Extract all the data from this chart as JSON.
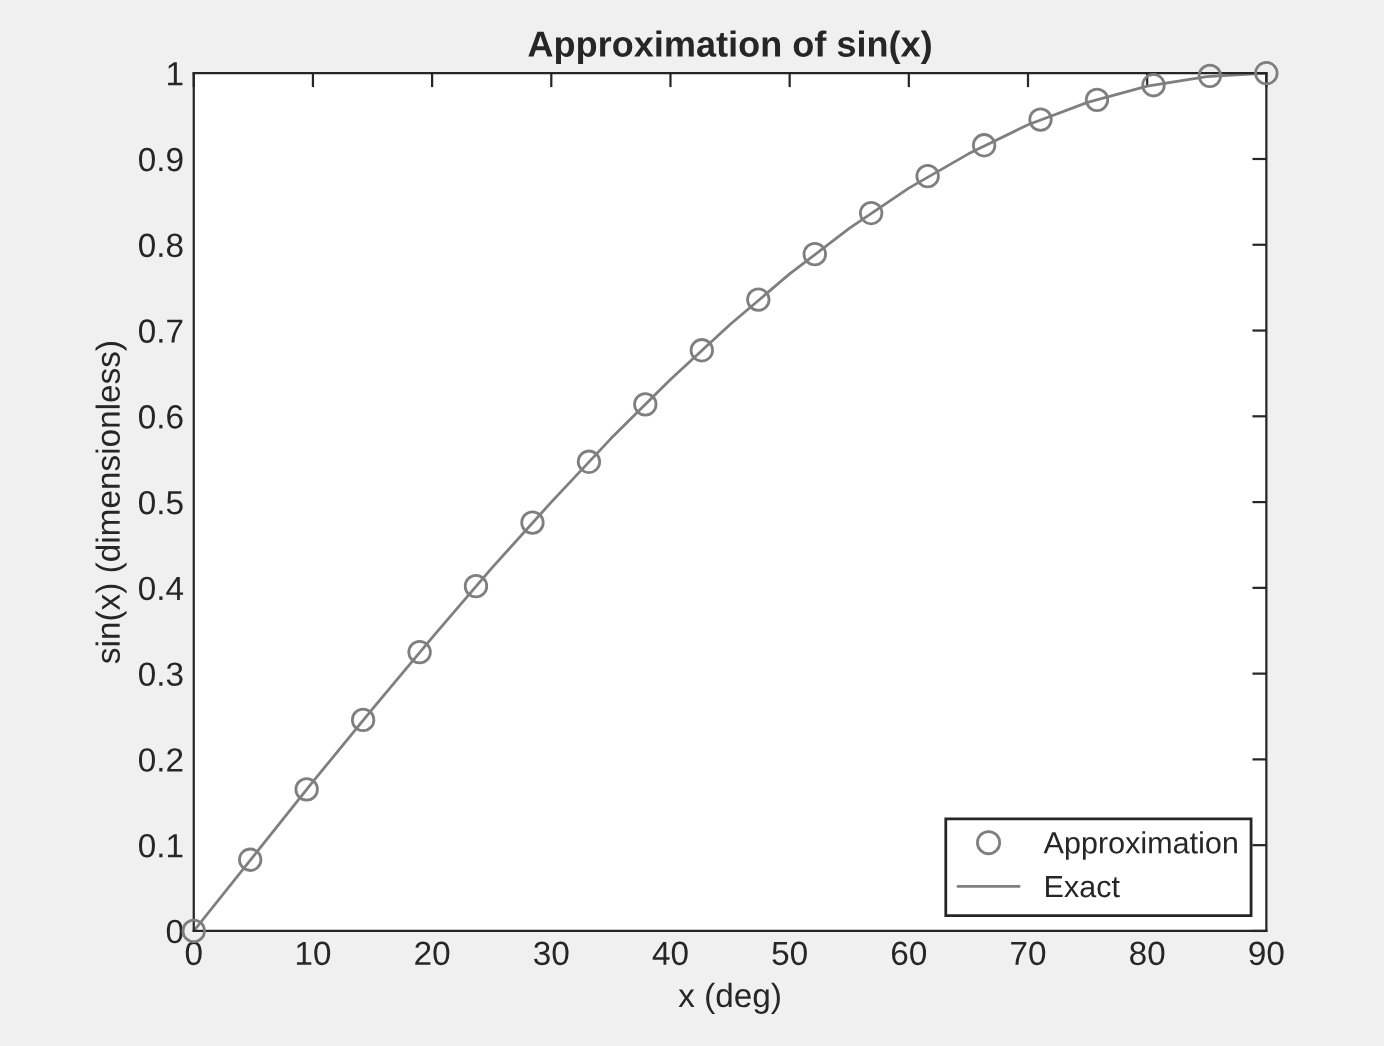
{
  "chart_data": {
    "type": "line",
    "title": "Approximation of sin(x)",
    "xlabel": "x (deg)",
    "ylabel": "sin(x) (dimensionless)",
    "xlim": [
      0,
      90
    ],
    "ylim": [
      0,
      1
    ],
    "xticks": [
      0,
      10,
      20,
      30,
      40,
      50,
      60,
      70,
      80,
      90
    ],
    "yticks": [
      0,
      0.1,
      0.2,
      0.3,
      0.4,
      0.5,
      0.6,
      0.7,
      0.8,
      0.9,
      1
    ],
    "grid": false,
    "legend": "bottom right",
    "series": [
      {
        "name": "Approximation",
        "type": "scatter",
        "marker": "circle",
        "color": "#7f7f7f",
        "x": [
          0,
          4.737,
          9.474,
          14.21,
          18.95,
          23.68,
          28.42,
          33.16,
          37.89,
          42.63,
          47.37,
          52.11,
          56.84,
          61.58,
          66.32,
          71.05,
          75.79,
          80.53,
          85.26,
          90
        ],
        "values": [
          0,
          0.083,
          0.165,
          0.246,
          0.325,
          0.402,
          0.476,
          0.547,
          0.614,
          0.677,
          0.736,
          0.789,
          0.837,
          0.88,
          0.916,
          0.946,
          0.969,
          0.986,
          0.997,
          1
        ]
      },
      {
        "name": "Exact",
        "type": "line",
        "marker": "none",
        "line_style": "solid",
        "color": "#7f7f7f",
        "x": [
          0,
          5,
          10,
          15,
          20,
          25,
          30,
          35,
          40,
          45,
          50,
          55,
          60,
          65,
          70,
          75,
          80,
          85,
          90
        ],
        "values": [
          0,
          0.087,
          0.174,
          0.259,
          0.342,
          0.423,
          0.5,
          0.574,
          0.643,
          0.707,
          0.766,
          0.819,
          0.866,
          0.906,
          0.94,
          0.966,
          0.985,
          0.996,
          1
        ]
      }
    ]
  }
}
